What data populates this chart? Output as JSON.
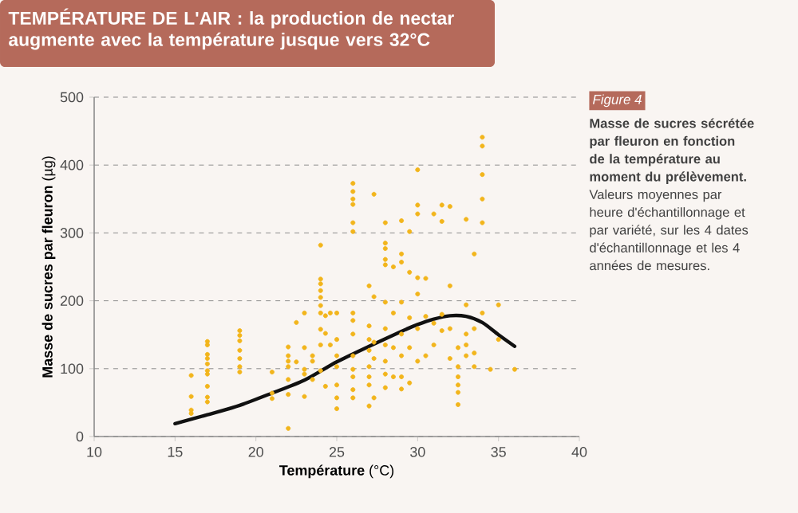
{
  "chart_data": {
    "type": "scatter",
    "title": "TEMPÉRATURE DE L'AIR : la production de nectar augmente avec la température jusque vers 32°C",
    "xlabel": "**Température** (°C)",
    "ylabel": "**Masse de sucres par fleuron** (µg)",
    "annotations": [
      "Figure 4",
      "**Masse de sucres sécrétée par fleuron en fonction de la température au moment du prélèvement.** Valeurs moyennes par heure d'échantillonnage et par variété, sur les 4 dates d'échantillonnage et les 4 années de mesures."
    ],
    "xlim": [
      10,
      40
    ],
    "xticks": [
      10,
      15,
      20,
      25,
      30,
      35,
      40
    ],
    "ylim": [
      0,
      500
    ],
    "yticks": [
      0,
      100,
      200,
      300,
      400,
      500
    ],
    "grid": "y",
    "marker": "circle",
    "series": [
      {
        "color": "#f2b51c",
        "x": [
          16,
          16,
          16,
          16,
          17,
          17,
          17,
          17,
          17,
          17,
          17,
          17,
          17,
          17,
          19,
          19,
          19,
          19,
          19,
          19,
          19,
          21,
          21,
          21,
          22,
          22,
          22,
          22,
          22,
          22,
          22,
          22.5,
          22.5,
          23,
          23,
          23,
          23,
          23,
          23.5,
          23.5,
          23.5,
          24,
          24,
          24,
          24,
          24,
          24,
          24,
          24,
          24,
          24,
          24.3,
          24.3,
          24.3,
          24.6,
          24.6,
          25,
          25,
          25,
          25,
          25,
          25,
          25,
          26,
          26,
          26,
          26,
          26,
          26,
          26,
          26,
          26,
          26,
          26,
          26,
          26,
          26,
          27,
          27,
          27,
          27,
          27,
          27,
          27,
          27,
          27.3,
          27.3,
          27.3,
          27.3,
          27.3,
          28,
          28,
          28,
          28,
          28,
          28,
          28,
          28,
          28,
          28,
          28,
          28.5,
          28.5,
          28.5,
          28.5,
          29,
          29,
          29,
          29,
          29,
          29,
          29,
          29,
          29.5,
          29.5,
          29.5,
          29.5,
          29.5,
          30,
          30,
          30,
          30,
          30,
          30,
          30,
          30.5,
          30.5,
          30.5,
          31,
          31,
          31,
          31.5,
          31.5,
          31.5,
          31.5,
          32,
          32,
          32,
          32,
          32.5,
          32.5,
          32.5,
          32.5,
          32.5,
          32.5,
          33,
          33,
          33,
          33,
          33,
          33.5,
          33.5,
          33.5,
          33.5,
          34,
          34,
          34,
          34,
          34,
          34,
          34.5,
          35,
          35,
          36
        ],
        "values": [
          90,
          59,
          39,
          34,
          140,
          135,
          121,
          115,
          107,
          97,
          92,
          74,
          58,
          51,
          156,
          149,
          141,
          127,
          115,
          103,
          95,
          95,
          64,
          56,
          132,
          119,
          111,
          103,
          84,
          62,
          12,
          168,
          110,
          182,
          131,
          99,
          92,
          59,
          119,
          111,
          84,
          282,
          232,
          225,
          215,
          205,
          193,
          182,
          158,
          135,
          97,
          178,
          152,
          74,
          182,
          135,
          182,
          143,
          119,
          103,
          76,
          57,
          41,
          373,
          361,
          350,
          342,
          315,
          302,
          182,
          171,
          151,
          119,
          99,
          88,
          69,
          57,
          222,
          163,
          143,
          127,
          103,
          88,
          76,
          45,
          357,
          206,
          139,
          115,
          57,
          315,
          285,
          277,
          261,
          253,
          198,
          159,
          135,
          111,
          92,
          72,
          250,
          182,
          131,
          88,
          318,
          269,
          257,
          198,
          151,
          119,
          88,
          70,
          302,
          242,
          175,
          131,
          79,
          393,
          341,
          328,
          234,
          210,
          159,
          111,
          233,
          177,
          119,
          328,
          167,
          135,
          341,
          317,
          180,
          156,
          339,
          222,
          159,
          115,
          131,
          103,
          88,
          76,
          65,
          47,
          320,
          194,
          151,
          135,
          119,
          269,
          159,
          123,
          103,
          441,
          428,
          386,
          350,
          315,
          182,
          99,
          194,
          143,
          99
        ]
      },
      {
        "type": "line",
        "color": "#111111",
        "marker": "none",
        "x": [
          15,
          17,
          19,
          21,
          23,
          25,
          27,
          29,
          30,
          31,
          32,
          33,
          34,
          35,
          36
        ],
        "values": [
          19,
          32,
          46,
          64,
          83,
          110,
          133,
          155,
          165,
          173,
          178,
          177,
          168,
          150,
          133
        ]
      }
    ]
  }
}
